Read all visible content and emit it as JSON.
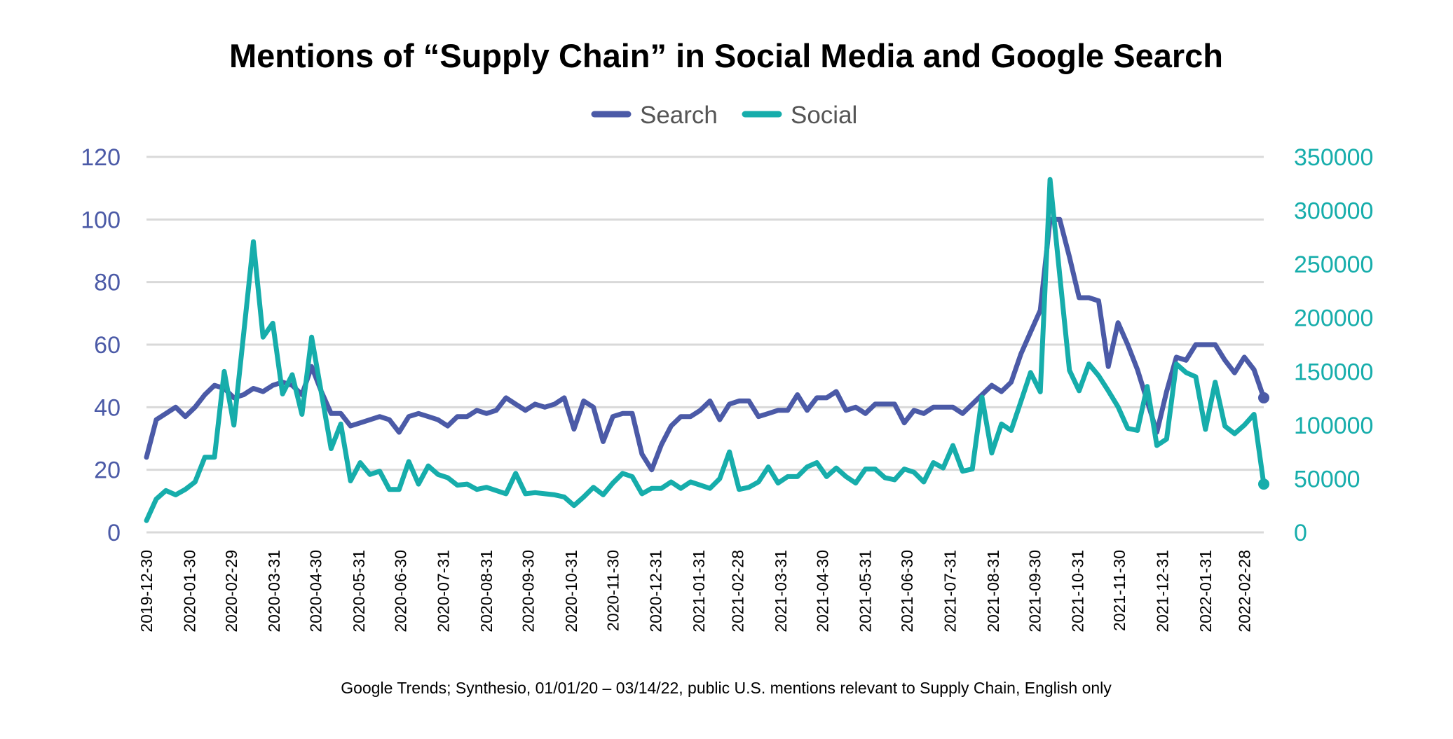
{
  "chart_data": {
    "type": "line",
    "title": "Mentions of “Supply Chain” in Social Media and Google Search",
    "footnote": "Google Trends; Synthesio, 01/01/20 – 03/14/22, public U.S. mentions relevant to Supply Chain, English only",
    "legend_position": "top",
    "grid": true,
    "x_range": [
      "2019-12-30",
      "2022-03-14"
    ],
    "x_tick_labels": [
      "2019-12-30",
      "2020-01-30",
      "2020-02-29",
      "2020-03-31",
      "2020-04-30",
      "2020-05-31",
      "2020-06-30",
      "2020-07-31",
      "2020-08-31",
      "2020-09-30",
      "2020-10-31",
      "2020-11-30",
      "2020-12-31",
      "2021-01-31",
      "2021-02-28",
      "2021-03-31",
      "2021-04-30",
      "2021-05-31",
      "2021-06-30",
      "2021-07-31",
      "2021-08-31",
      "2021-09-30",
      "2021-10-31",
      "2021-11-30",
      "2021-12-31",
      "2022-01-31",
      "2022-02-28"
    ],
    "y_left": {
      "range": [
        0,
        120
      ],
      "ticks": [
        "0",
        "20",
        "40",
        "60",
        "80",
        "100",
        "120"
      ],
      "color": "#4b5aa7"
    },
    "y_right": {
      "range": [
        0,
        350000
      ],
      "ticks": [
        "0",
        "50000",
        "100000",
        "150000",
        "200000",
        "250000",
        "300000",
        "350000"
      ],
      "color": "#16adab"
    },
    "x": [
      "2019-12-30",
      "2020-01-06",
      "2020-01-13",
      "2020-01-20",
      "2020-01-27",
      "2020-02-03",
      "2020-02-10",
      "2020-02-17",
      "2020-02-24",
      "2020-03-02",
      "2020-03-09",
      "2020-03-16",
      "2020-03-23",
      "2020-03-30",
      "2020-04-06",
      "2020-04-13",
      "2020-04-20",
      "2020-04-27",
      "2020-05-04",
      "2020-05-11",
      "2020-05-18",
      "2020-05-25",
      "2020-06-01",
      "2020-06-08",
      "2020-06-15",
      "2020-06-22",
      "2020-06-29",
      "2020-07-06",
      "2020-07-13",
      "2020-07-20",
      "2020-07-27",
      "2020-08-03",
      "2020-08-10",
      "2020-08-17",
      "2020-08-24",
      "2020-08-31",
      "2020-09-07",
      "2020-09-14",
      "2020-09-21",
      "2020-09-28",
      "2020-10-05",
      "2020-10-12",
      "2020-10-19",
      "2020-10-26",
      "2020-11-02",
      "2020-11-09",
      "2020-11-16",
      "2020-11-23",
      "2020-11-30",
      "2020-12-07",
      "2020-12-14",
      "2020-12-21",
      "2020-12-28",
      "2021-01-04",
      "2021-01-11",
      "2021-01-18",
      "2021-01-25",
      "2021-02-01",
      "2021-02-08",
      "2021-02-15",
      "2021-02-22",
      "2021-03-01",
      "2021-03-08",
      "2021-03-15",
      "2021-03-22",
      "2021-03-29",
      "2021-04-05",
      "2021-04-12",
      "2021-04-19",
      "2021-04-26",
      "2021-05-03",
      "2021-05-10",
      "2021-05-17",
      "2021-05-24",
      "2021-05-31",
      "2021-06-07",
      "2021-06-14",
      "2021-06-21",
      "2021-06-28",
      "2021-07-05",
      "2021-07-12",
      "2021-07-19",
      "2021-07-26",
      "2021-08-02",
      "2021-08-09",
      "2021-08-16",
      "2021-08-23",
      "2021-08-30",
      "2021-09-06",
      "2021-09-13",
      "2021-09-20",
      "2021-09-27",
      "2021-10-04",
      "2021-10-11",
      "2021-10-18",
      "2021-10-25",
      "2021-11-01",
      "2021-11-08",
      "2021-11-15",
      "2021-11-22",
      "2021-11-29",
      "2021-12-06",
      "2021-12-13",
      "2021-12-20",
      "2021-12-27",
      "2022-01-03",
      "2022-01-10",
      "2022-01-17",
      "2022-01-24",
      "2022-01-31",
      "2022-02-07",
      "2022-02-14",
      "2022-02-21",
      "2022-02-28",
      "2022-03-07",
      "2022-03-14"
    ],
    "series": [
      {
        "name": "Search",
        "axis": "left",
        "color": "#4b5aa7",
        "values": [
          24,
          36,
          38,
          40,
          37,
          40,
          44,
          47,
          46,
          43,
          44,
          46,
          45,
          47,
          48,
          47,
          44,
          53,
          45,
          38,
          38,
          34,
          35,
          36,
          37,
          36,
          32,
          37,
          38,
          37,
          36,
          34,
          37,
          37,
          39,
          38,
          39,
          43,
          41,
          39,
          41,
          40,
          41,
          43,
          33,
          42,
          40,
          29,
          37,
          38,
          38,
          25,
          20,
          28,
          34,
          37,
          37,
          39,
          42,
          36,
          41,
          42,
          42,
          37,
          38,
          39,
          39,
          44,
          39,
          43,
          43,
          45,
          39,
          40,
          38,
          41,
          41,
          41,
          35,
          39,
          38,
          40,
          40,
          40,
          38,
          41,
          44,
          47,
          45,
          48,
          57,
          64,
          71,
          100,
          100,
          88,
          75,
          75,
          74,
          53,
          67,
          60,
          52,
          42,
          32,
          45,
          56,
          55,
          60,
          60,
          60,
          55,
          51,
          56,
          52,
          43
        ]
      },
      {
        "name": "Social",
        "axis": "right",
        "color": "#16adab",
        "values": [
          11000,
          31000,
          39000,
          35000,
          40000,
          47000,
          70000,
          70000,
          150000,
          100000,
          185000,
          271000,
          182000,
          195000,
          129000,
          147000,
          110000,
          182000,
          130000,
          78000,
          101000,
          48000,
          65000,
          54000,
          57000,
          40000,
          40000,
          66000,
          45000,
          62000,
          54000,
          51000,
          44000,
          45000,
          40000,
          42000,
          39000,
          36000,
          55000,
          36000,
          37000,
          36000,
          35000,
          33000,
          25000,
          33000,
          42000,
          35000,
          46000,
          55000,
          52000,
          36000,
          41000,
          41000,
          47000,
          41000,
          47000,
          44000,
          41000,
          50000,
          75000,
          40000,
          42000,
          47000,
          61000,
          46000,
          52000,
          52000,
          61000,
          65000,
          52000,
          60000,
          52000,
          46000,
          59000,
          59000,
          51000,
          49000,
          59000,
          56000,
          47000,
          65000,
          60000,
          81000,
          57000,
          59000,
          126000,
          74000,
          101000,
          95000,
          122000,
          149000,
          131000,
          329000,
          240000,
          151000,
          132000,
          157000,
          146000,
          132000,
          117000,
          97000,
          95000,
          136000,
          81000,
          87000,
          157000,
          149000,
          145000,
          96000,
          140000,
          99000,
          92000,
          100000,
          110000,
          45000
        ]
      }
    ]
  }
}
